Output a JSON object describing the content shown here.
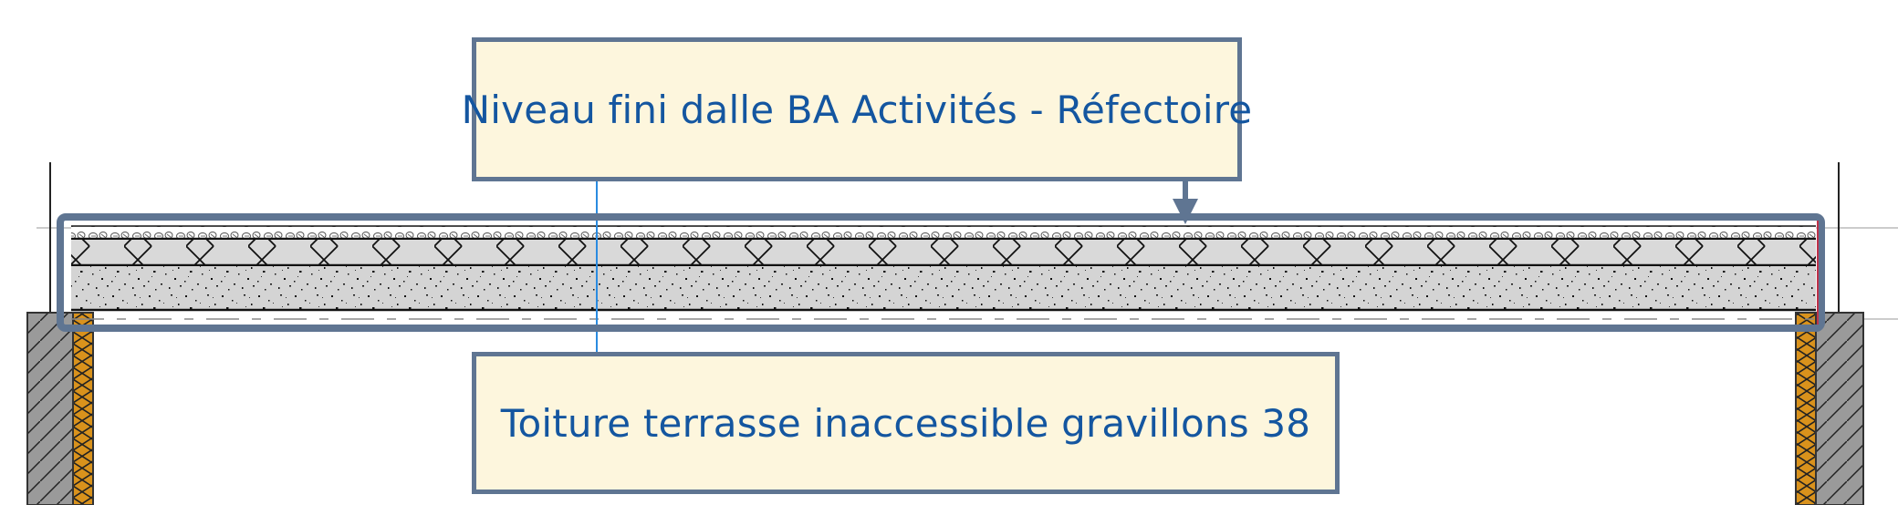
{
  "callouts": {
    "top_label": "Niveau fini dalle BA Activités - Réfectoire",
    "bottom_label": "Toiture terrasse inaccessible gravillons 38"
  },
  "colors": {
    "callout_fill": "#fdf6dd",
    "callout_border": "#5f7592",
    "callout_text": "#1456a0",
    "highlight_frame": "#5f7592",
    "insulation_orange": "#d9921c",
    "concrete_grey": "#d4d4d4",
    "wall_grey": "#9a9a9a",
    "reference_line_blue": "#2a8be0"
  },
  "icons": [
    "leader-arrow-icon"
  ]
}
